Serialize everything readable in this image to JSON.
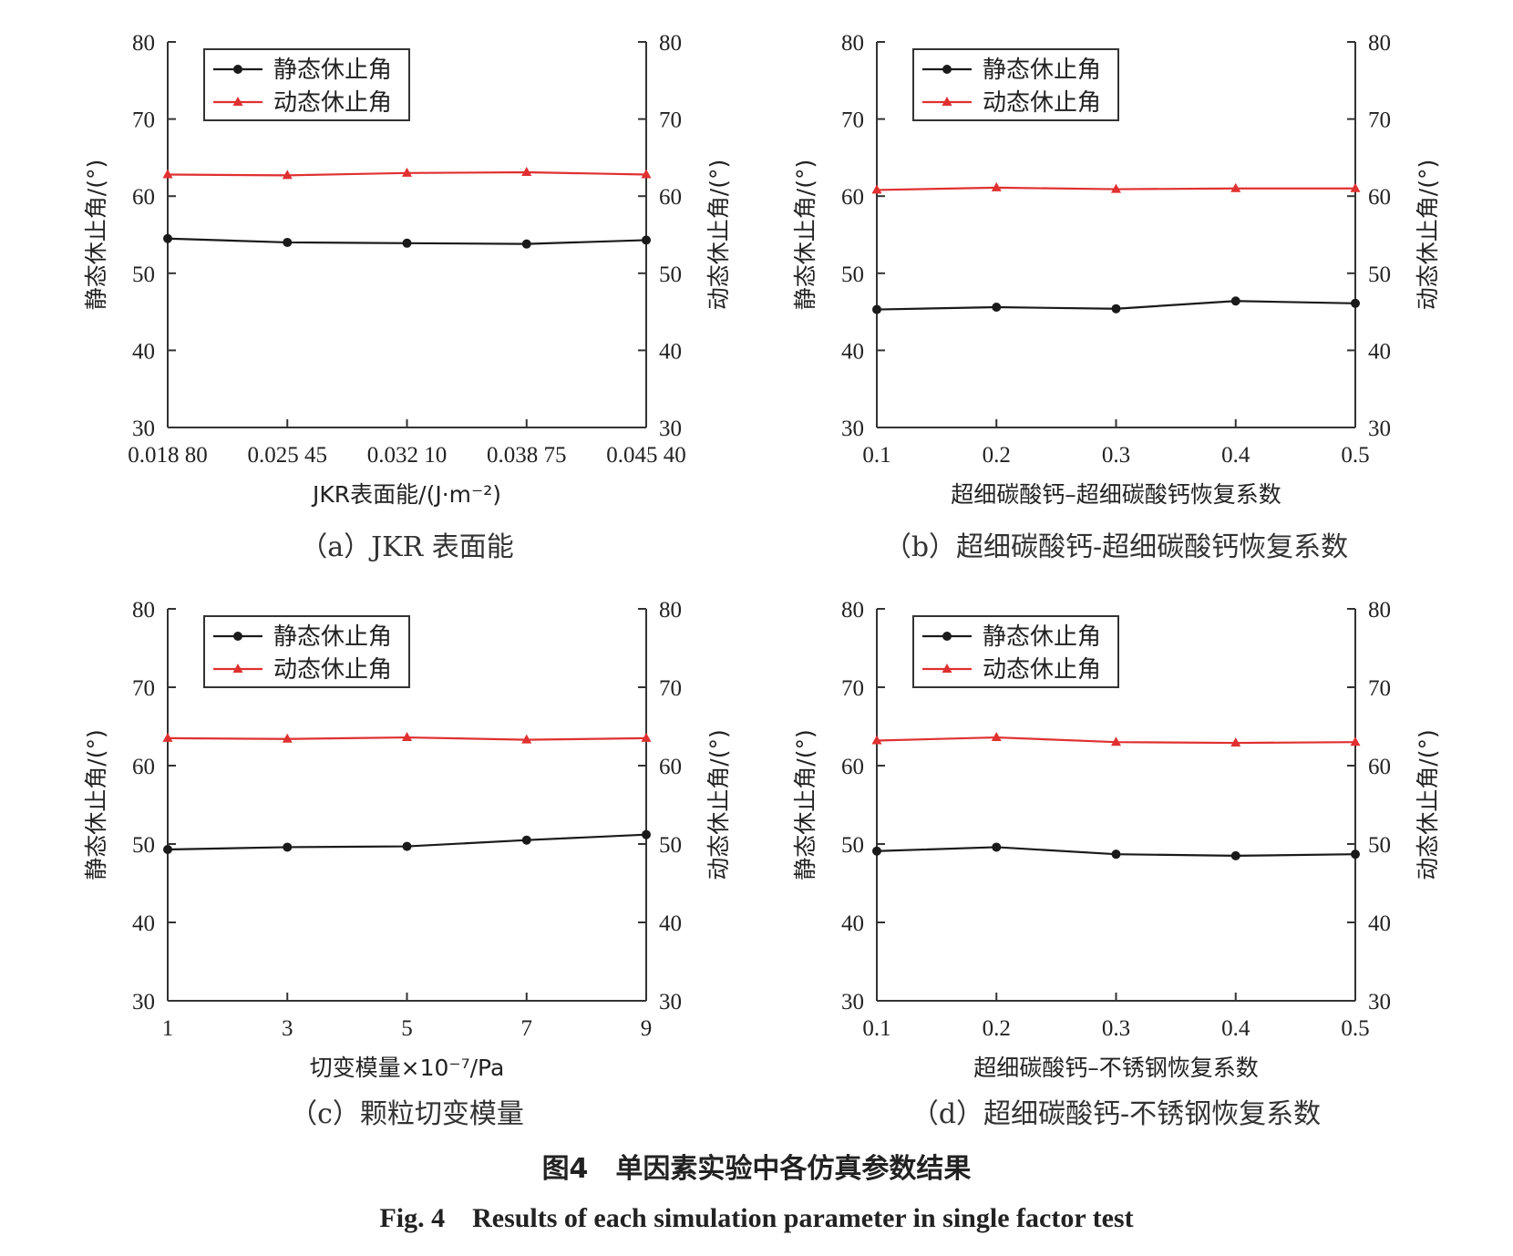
{
  "figure": {
    "title_cn": "图4　单因素实验中各仿真参数结果",
    "title_en": "Fig. 4　Results of each simulation parameter in single factor test"
  },
  "colors": {
    "static": "#1a1a1a",
    "dynamic": "#e03030"
  },
  "chart_data": [
    {
      "type": "line",
      "caption": "（a）JKR 表面能",
      "xlabel": "JKR表面能/(J·m⁻²)",
      "ylabel_left": "静态休止角/(°)",
      "ylabel_right": "动态休止角/(°)",
      "x_ticks": [
        "0.018 80",
        "0.025 45",
        "0.032 10",
        "0.038 75",
        "0.045 40"
      ],
      "ylim": [
        30,
        80
      ],
      "y_ticks": [
        30,
        40,
        50,
        60,
        70,
        80
      ],
      "legend_position": "top-left",
      "series": [
        {
          "name": "静态休止角",
          "marker": "circle",
          "values": [
            54.5,
            54.0,
            53.9,
            53.8,
            54.3
          ]
        },
        {
          "name": "动态休止角",
          "marker": "triangle",
          "values": [
            62.8,
            62.7,
            63.0,
            63.1,
            62.8
          ]
        }
      ]
    },
    {
      "type": "line",
      "caption": "（b）超细碳酸钙-超细碳酸钙恢复系数",
      "xlabel": "超细碳酸钙–超细碳酸钙恢复系数",
      "ylabel_left": "静态休止角/(°)",
      "ylabel_right": "动态休止角/(°)",
      "x_ticks": [
        "0.1",
        "0.2",
        "0.3",
        "0.4",
        "0.5"
      ],
      "ylim": [
        30,
        80
      ],
      "y_ticks": [
        30,
        40,
        50,
        60,
        70,
        80
      ],
      "legend_position": "top-left",
      "series": [
        {
          "name": "静态休止角",
          "marker": "circle",
          "values": [
            45.3,
            45.6,
            45.4,
            46.4,
            46.1
          ]
        },
        {
          "name": "动态休止角",
          "marker": "triangle",
          "values": [
            60.8,
            61.1,
            60.9,
            61.0,
            61.0
          ]
        }
      ]
    },
    {
      "type": "line",
      "caption": "（c）颗粒切变模量",
      "xlabel": "切变模量×10⁻⁷/Pa",
      "ylabel_left": "静态休止角/(°)",
      "ylabel_right": "动态休止角/(°)",
      "x_ticks": [
        "1",
        "3",
        "5",
        "7",
        "9"
      ],
      "ylim": [
        30,
        80
      ],
      "y_ticks": [
        30,
        40,
        50,
        60,
        70,
        80
      ],
      "legend_position": "top-left",
      "series": [
        {
          "name": "静态休止角",
          "marker": "circle",
          "values": [
            49.3,
            49.6,
            49.7,
            50.5,
            51.2
          ]
        },
        {
          "name": "动态休止角",
          "marker": "triangle",
          "values": [
            63.5,
            63.4,
            63.6,
            63.3,
            63.5
          ]
        }
      ]
    },
    {
      "type": "line",
      "caption": "（d）超细碳酸钙-不锈钢恢复系数",
      "xlabel": "超细碳酸钙–不锈钢恢复系数",
      "ylabel_left": "静态休止角/(°)",
      "ylabel_right": "动态休止角/(°)",
      "x_ticks": [
        "0.1",
        "0.2",
        "0.3",
        "0.4",
        "0.5"
      ],
      "ylim": [
        30,
        80
      ],
      "y_ticks": [
        30,
        40,
        50,
        60,
        70,
        80
      ],
      "legend_position": "top-left",
      "series": [
        {
          "name": "静态休止角",
          "marker": "circle",
          "values": [
            49.1,
            49.6,
            48.7,
            48.5,
            48.7
          ]
        },
        {
          "name": "动态休止角",
          "marker": "triangle",
          "values": [
            63.2,
            63.6,
            63.0,
            62.9,
            63.0
          ]
        }
      ]
    }
  ]
}
